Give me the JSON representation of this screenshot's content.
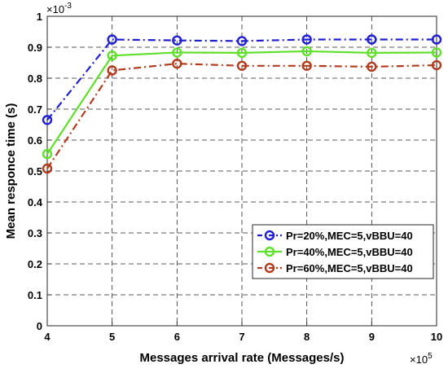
{
  "chart_data": {
    "type": "line",
    "title": "",
    "xlabel": "Messages arrival rate (Messages/s)",
    "ylabel": "Mean responce time (s)",
    "x_multiplier": "×10",
    "x_multiplier_exp": "5",
    "y_multiplier": "×10",
    "y_multiplier_exp": "-3",
    "x": [
      4,
      5,
      6,
      7,
      8,
      9,
      10
    ],
    "xlim": [
      4,
      10
    ],
    "ylim": [
      0,
      1
    ],
    "x_ticks": [
      "4",
      "5",
      "6",
      "7",
      "8",
      "9",
      "10"
    ],
    "y_ticks": [
      "0",
      "0.1",
      "0.2",
      "0.3",
      "0.4",
      "0.5",
      "0.6",
      "0.7",
      "0.8",
      "0.9",
      "1"
    ],
    "grid": true,
    "legend_position": "lower-right",
    "series": [
      {
        "name": "Pr=20%,MEC=5,vBBU=40",
        "color": "#1f1fd6",
        "dash": "dashdot",
        "values": [
          0.665,
          0.925,
          0.922,
          0.92,
          0.925,
          0.925,
          0.925
        ]
      },
      {
        "name": "Pr=40%,MEC=5,vBBU=40",
        "color": "#5fe02a",
        "dash": "solid",
        "values": [
          0.555,
          0.873,
          0.883,
          0.882,
          0.887,
          0.882,
          0.883
        ]
      },
      {
        "name": "Pr=60%,MEC=5,vBBU=40",
        "color": "#b23b1e",
        "dash": "dashdot",
        "values": [
          0.508,
          0.825,
          0.847,
          0.84,
          0.84,
          0.837,
          0.842
        ]
      }
    ]
  }
}
